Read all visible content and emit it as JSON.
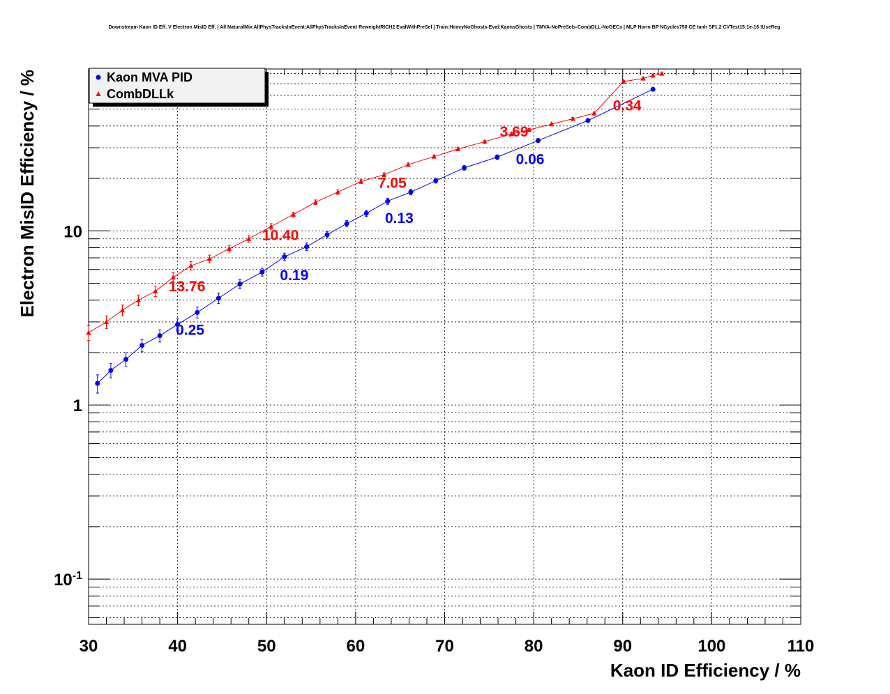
{
  "chart_data": {
    "type": "scatter",
    "title": "Downstream Kaon ID Eff. V Electron MisID Eff. | All NaturalMix AllPhysTracksInEvent:AllPhysTracksInEvent ReweightRICH2 EvalWithPreSel | Train:HeavyNoGhosts-Eval:KaonsGhosts | TMVA-NoPreSels-CombDLL-NoGECs | MLP Norm BP NCycles750 CE tanh SF1.2 CVTest15:1e-16 !UseReg",
    "xlabel": "Kaon ID Efficiency / %",
    "ylabel": "Electron MisID Efficiency / %",
    "xlim": [
      30,
      110
    ],
    "ylim": [
      0.055,
      85
    ],
    "yscale": "log",
    "grid": true,
    "legend_position": "top-left",
    "x_ticks": [
      30,
      40,
      50,
      60,
      70,
      80,
      90,
      100,
      110
    ],
    "y_ticks": [
      {
        "value": 0.1,
        "base": "10",
        "exp": "-1"
      },
      {
        "value": 1,
        "base": "1",
        "exp": ""
      },
      {
        "value": 10,
        "base": "10",
        "exp": ""
      }
    ],
    "series": [
      {
        "name": "Kaon MVA PID",
        "color": "#0000ff",
        "marker": "circle",
        "x": [
          31.0,
          32.5,
          34.2,
          36.0,
          38.0,
          40.0,
          42.2,
          44.6,
          47.0,
          49.5,
          52.0,
          54.5,
          56.8,
          59.0,
          61.2,
          63.6,
          66.2,
          69.0,
          72.2,
          75.9,
          80.5,
          86.1,
          93.4
        ],
        "y": [
          1.33,
          1.58,
          1.83,
          2.2,
          2.5,
          2.9,
          3.4,
          4.1,
          4.95,
          5.8,
          7.1,
          8.1,
          9.5,
          11.0,
          12.6,
          14.8,
          16.7,
          19.4,
          23.0,
          26.5,
          33.0,
          43.0,
          65.0
        ],
        "yerr": [
          0.16,
          0.15,
          0.16,
          0.18,
          0.2,
          0.22,
          0.25,
          0.28,
          0.3,
          0.3,
          0.35,
          0.4,
          0.4,
          0.45,
          0.5,
          0.6,
          0.6,
          0.6,
          0.7,
          0.8,
          0.9,
          1.0,
          1.2
        ]
      },
      {
        "name": "CombDLLk",
        "color": "#ff0000",
        "marker": "triangle",
        "x": [
          30.0,
          32.0,
          33.8,
          35.6,
          37.5,
          39.5,
          41.5,
          43.6,
          45.8,
          48.0,
          50.5,
          53.0,
          55.5,
          58.0,
          60.6,
          63.2,
          65.9,
          68.8,
          71.5,
          74.5,
          77.5,
          79.5,
          82.0,
          84.4,
          86.8,
          90.1,
          92.3,
          93.4,
          94.4
        ],
        "y": [
          2.6,
          3.0,
          3.5,
          4.0,
          4.5,
          5.4,
          6.3,
          6.9,
          7.9,
          9.0,
          10.6,
          12.4,
          14.6,
          16.7,
          19.2,
          21.0,
          24.0,
          26.7,
          29.5,
          32.5,
          36.0,
          38.0,
          41.0,
          44.0,
          47.3,
          72.0,
          75.0,
          78.0,
          80.0
        ],
        "yerr": [
          0.25,
          0.25,
          0.25,
          0.28,
          0.3,
          0.35,
          0.35,
          0.35,
          0.35,
          0.4,
          0.4,
          0.4,
          0.45,
          0.5,
          0.5,
          0.5,
          0.5,
          0.5,
          0.6,
          0.6,
          0.7,
          0.7,
          0.7,
          0.8,
          0.8,
          1.0,
          1.0,
          1.0,
          1.0
        ]
      }
    ],
    "annotations": [
      {
        "text": "13.76",
        "x": 39.0,
        "y": 4.85,
        "color": "#ff0000"
      },
      {
        "text": "10.40",
        "x": 49.5,
        "y": 9.55,
        "color": "#ff0000"
      },
      {
        "text": "7.05",
        "x": 62.5,
        "y": 19.0,
        "color": "#ff0000"
      },
      {
        "text": "3.69",
        "x": 76.2,
        "y": 37.5,
        "color": "#ff0000"
      },
      {
        "text": "0.34",
        "x": 88.9,
        "y": 53.0,
        "color": "#ff0000"
      },
      {
        "text": "0.25",
        "x": 39.8,
        "y": 2.72,
        "color": "#0000ff"
      },
      {
        "text": "0.19",
        "x": 51.5,
        "y": 5.6,
        "color": "#0000ff"
      },
      {
        "text": "0.13",
        "x": 63.3,
        "y": 11.95,
        "color": "#0000ff"
      },
      {
        "text": "0.06",
        "x": 78.0,
        "y": 26.0,
        "color": "#0000ff"
      }
    ]
  }
}
